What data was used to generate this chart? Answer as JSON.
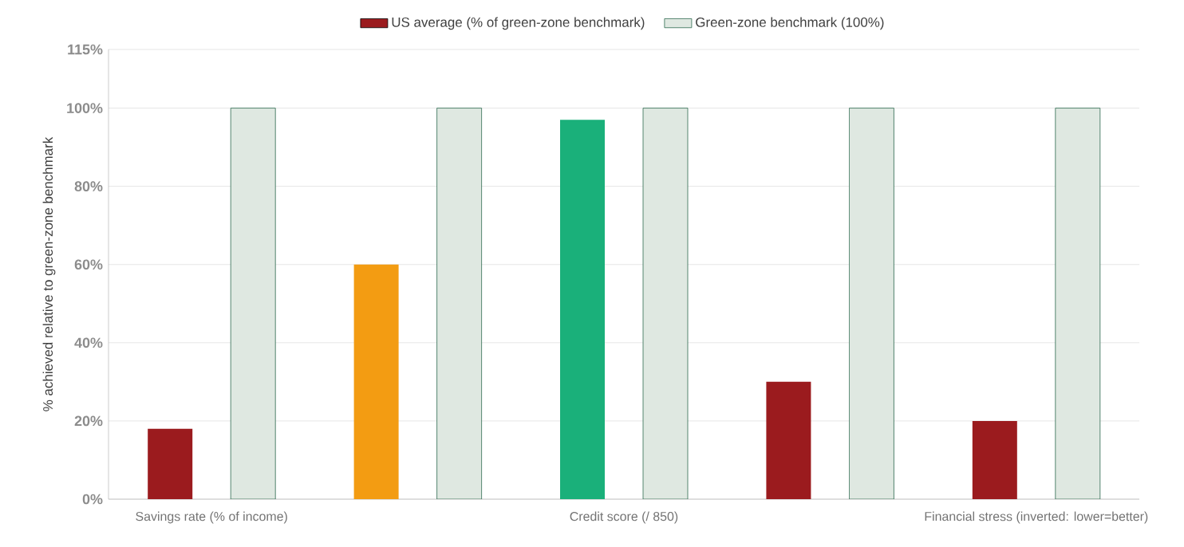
{
  "chart_data": {
    "type": "bar",
    "categories": [
      "Savings rate (% of income)",
      null,
      "Credit score (/ 850)",
      null,
      "Financial stress (inverted: lower=better)"
    ],
    "series": [
      {
        "name": "US average (% of green-zone benchmark)",
        "color": "#9b1b1e",
        "colors": [
          "#9b1b1e",
          "#f39c12",
          "#1ab07a",
          "#9b1b1e",
          "#9b1b1e"
        ],
        "values": [
          18,
          60,
          97,
          30,
          20
        ]
      },
      {
        "name": "Green-zone benchmark (100%)",
        "color": "#dfe8e1",
        "values": [
          100,
          100,
          100,
          100,
          100
        ]
      }
    ],
    "ylabel": "% achieved relative to green-zone benchmark",
    "ylim": [
      0,
      115
    ],
    "yticks": [
      {
        "value": 0,
        "label": "0%"
      },
      {
        "value": 20,
        "label": "20%"
      },
      {
        "value": 40,
        "label": "40%"
      },
      {
        "value": 60,
        "label": "60%"
      },
      {
        "value": 80,
        "label": "80%"
      },
      {
        "value": 100,
        "label": "100%"
      },
      {
        "value": 115,
        "label": "115%"
      }
    ],
    "grid": "y",
    "legend": "top"
  }
}
